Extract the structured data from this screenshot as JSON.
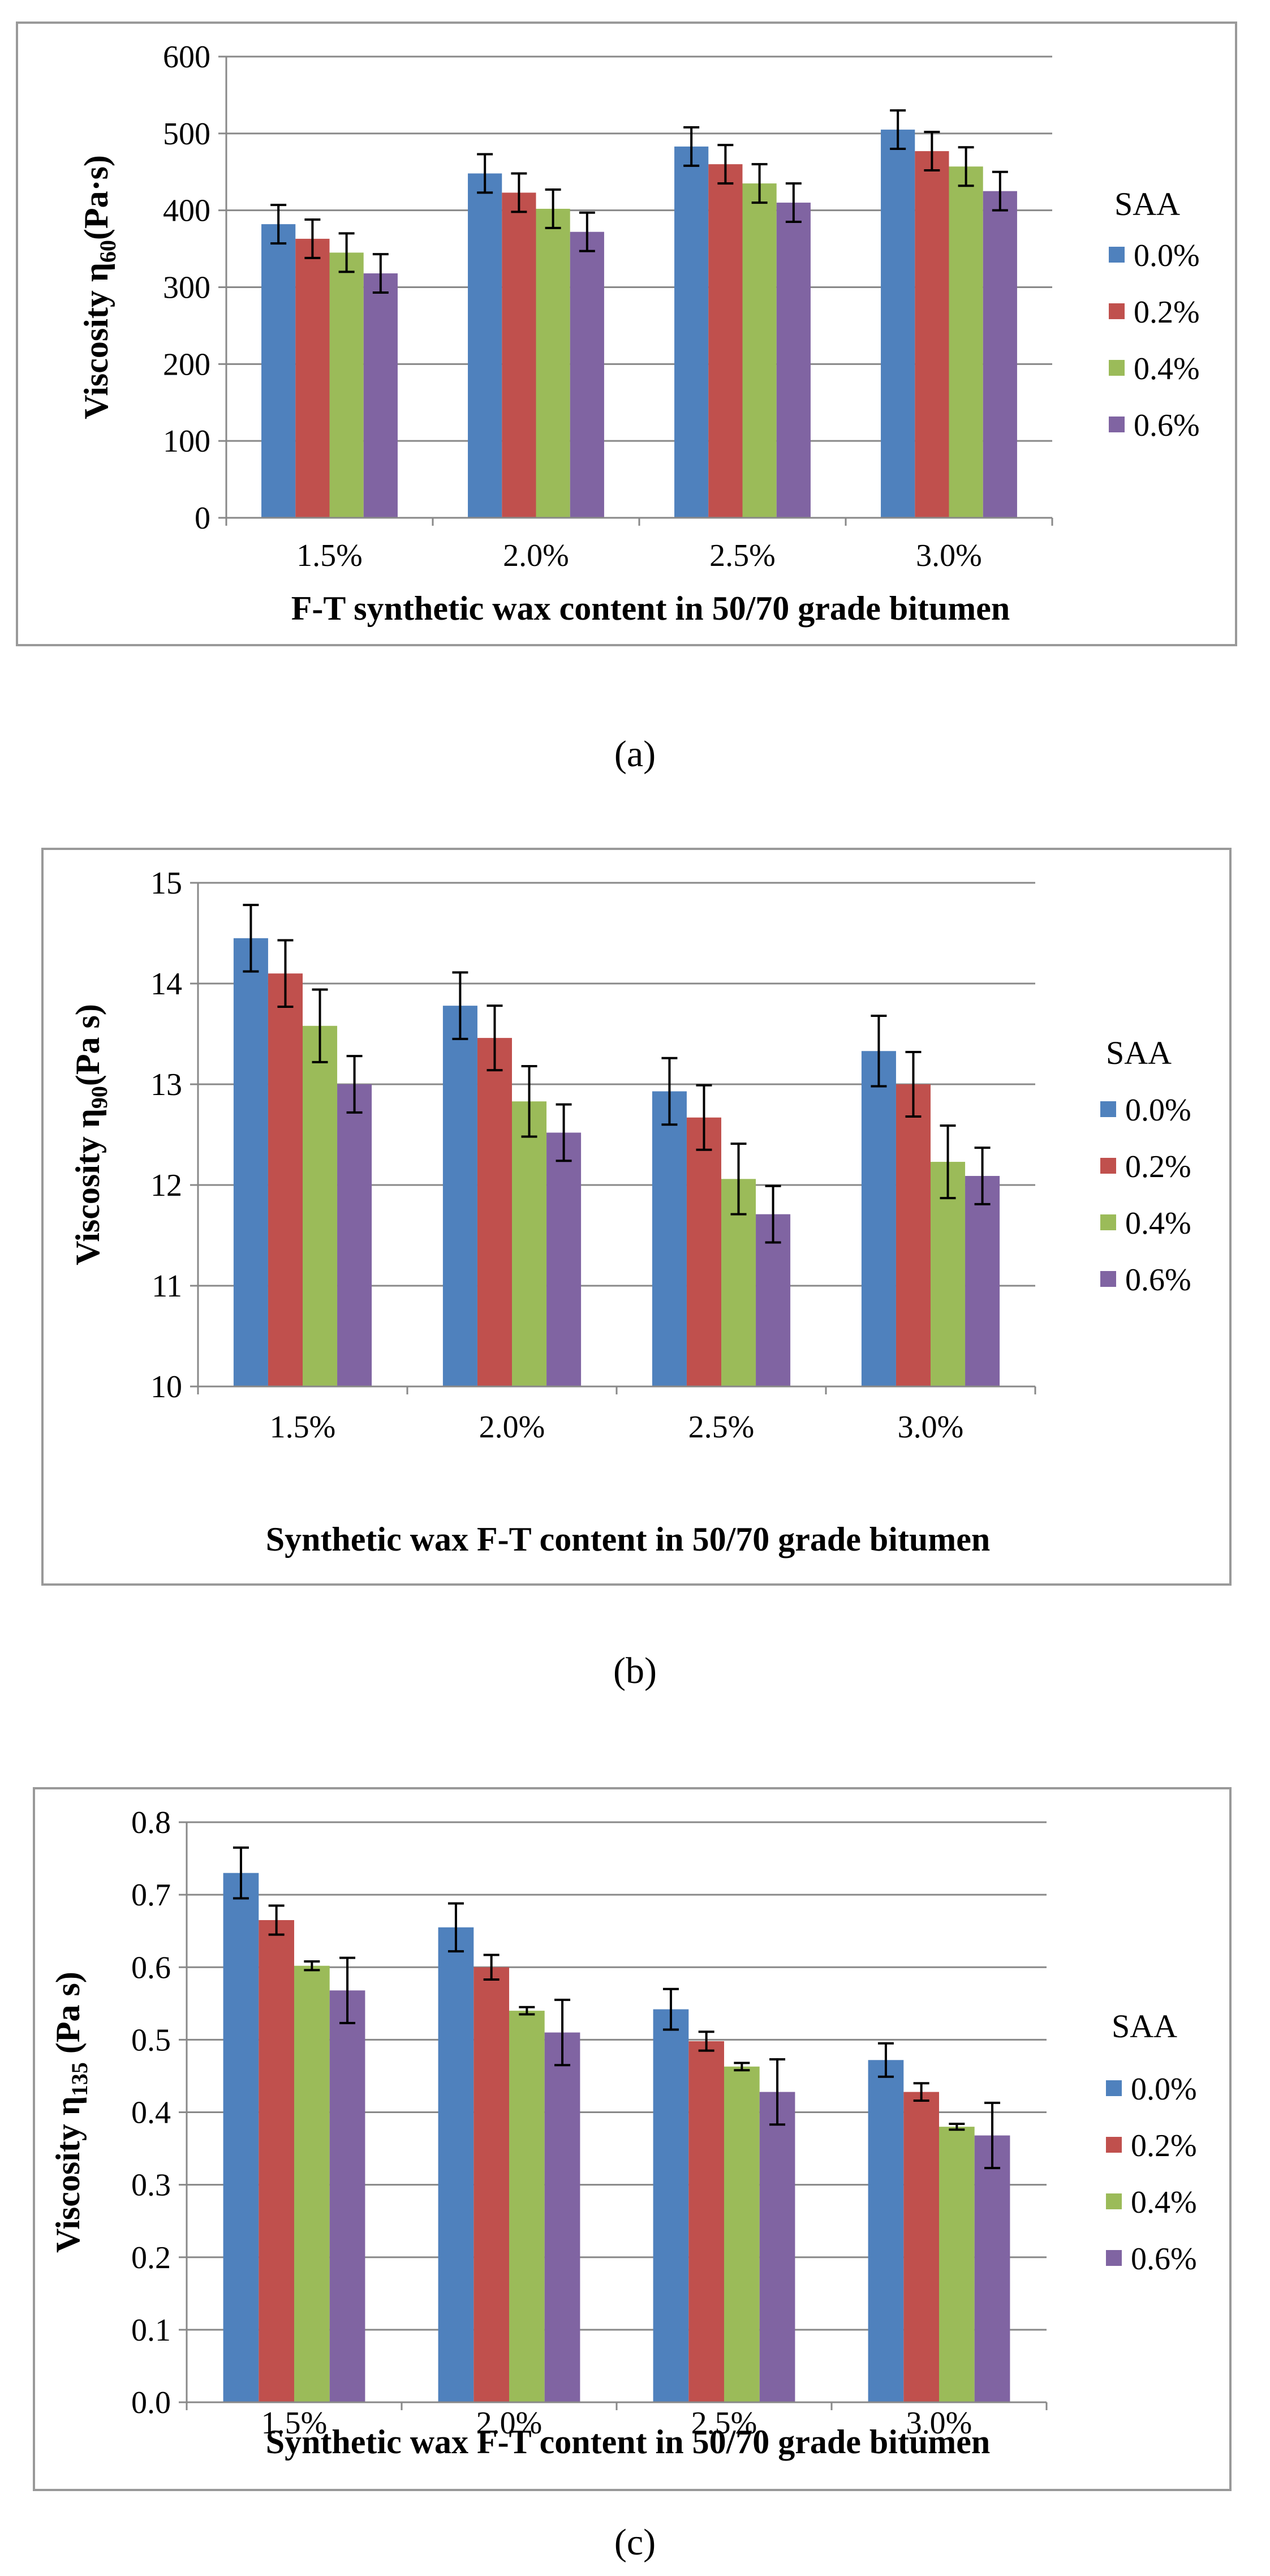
{
  "colors": {
    "series": [
      "#4F81BD",
      "#C0504D",
      "#9BBB59",
      "#8064A2"
    ],
    "grid": "#888888",
    "axis": "#888888",
    "frame": "#999999",
    "error_bar": "#000000"
  },
  "chart_data": [
    {
      "type": "bar",
      "title": "",
      "caption": "(a)",
      "categories": [
        "1.5%",
        "2.0%",
        "2.5%",
        "3.0%"
      ],
      "legend_title": "SAA",
      "legend_position": "right",
      "xlabel": "F-T synthetic wax content in 50/70 grade bitumen",
      "ylabel_main": "Viscosity η",
      "ylabel_sub": "60",
      "ylabel_unit": "(Pa·s)",
      "ylim": [
        0,
        600
      ],
      "yticks": [
        "0",
        "100",
        "200",
        "300",
        "400",
        "500",
        "600"
      ],
      "grid": true,
      "series": [
        {
          "name": "0.0%",
          "values": [
            382,
            448,
            483,
            505
          ],
          "errors": [
            25,
            25,
            25,
            25
          ]
        },
        {
          "name": "0.2%",
          "values": [
            363,
            423,
            460,
            477
          ],
          "errors": [
            25,
            25,
            25,
            25
          ]
        },
        {
          "name": "0.4%",
          "values": [
            345,
            402,
            435,
            457
          ],
          "errors": [
            25,
            25,
            25,
            25
          ]
        },
        {
          "name": "0.6%",
          "values": [
            318,
            372,
            410,
            425
          ],
          "errors": [
            25,
            25,
            25,
            25
          ]
        }
      ]
    },
    {
      "type": "bar",
      "title": "",
      "caption": "(b)",
      "categories": [
        "1.5%",
        "2.0%",
        "2.5%",
        "3.0%"
      ],
      "legend_title": "SAA",
      "legend_position": "right",
      "xlabel": "Synthetic wax F-T content in 50/70 grade bitumen",
      "ylabel_main": "Viscosity  η",
      "ylabel_sub": "90",
      "ylabel_unit": "(Pa s)",
      "ylim": [
        10,
        15
      ],
      "yticks": [
        "10",
        "11",
        "12",
        "13",
        "14",
        "15"
      ],
      "grid": true,
      "series": [
        {
          "name": "0.0%",
          "values": [
            14.45,
            13.78,
            12.93,
            13.33
          ],
          "errors": [
            0.33,
            0.33,
            0.33,
            0.35
          ]
        },
        {
          "name": "0.2%",
          "values": [
            14.1,
            13.46,
            12.67,
            13.0
          ],
          "errors": [
            0.33,
            0.32,
            0.32,
            0.32
          ]
        },
        {
          "name": "0.4%",
          "values": [
            13.58,
            12.83,
            12.06,
            12.23
          ],
          "errors": [
            0.36,
            0.35,
            0.35,
            0.36
          ]
        },
        {
          "name": "0.6%",
          "values": [
            13.0,
            12.52,
            11.71,
            12.09
          ],
          "errors": [
            0.28,
            0.28,
            0.28,
            0.28
          ]
        }
      ]
    },
    {
      "type": "bar",
      "title": "",
      "caption": "(c)",
      "categories": [
        "1.5%",
        "2.0%",
        "2.5%",
        "3.0%"
      ],
      "legend_title": "SAA",
      "legend_position": "right",
      "xlabel": "Synthetic wax F-T content in 50/70 grade bitumen",
      "ylabel_main": "Viscosity  η",
      "ylabel_sub": "135",
      "ylabel_unit": " (Pa s)",
      "ylim": [
        0,
        0.8
      ],
      "yticks": [
        "0.0",
        "0.1",
        "0.2",
        "0.3",
        "0.4",
        "0.5",
        "0.6",
        "0.7",
        "0.8"
      ],
      "grid": true,
      "series": [
        {
          "name": "0.0%",
          "values": [
            0.73,
            0.655,
            0.542,
            0.472
          ],
          "errors": [
            0.035,
            0.033,
            0.028,
            0.023
          ]
        },
        {
          "name": "0.2%",
          "values": [
            0.665,
            0.6,
            0.498,
            0.428
          ],
          "errors": [
            0.02,
            0.017,
            0.013,
            0.012
          ]
        },
        {
          "name": "0.4%",
          "values": [
            0.602,
            0.54,
            0.463,
            0.38
          ],
          "errors": [
            0.006,
            0.005,
            0.005,
            0.004
          ]
        },
        {
          "name": "0.6%",
          "values": [
            0.568,
            0.51,
            0.428,
            0.368
          ],
          "errors": [
            0.045,
            0.045,
            0.045,
            0.045
          ]
        }
      ]
    }
  ]
}
